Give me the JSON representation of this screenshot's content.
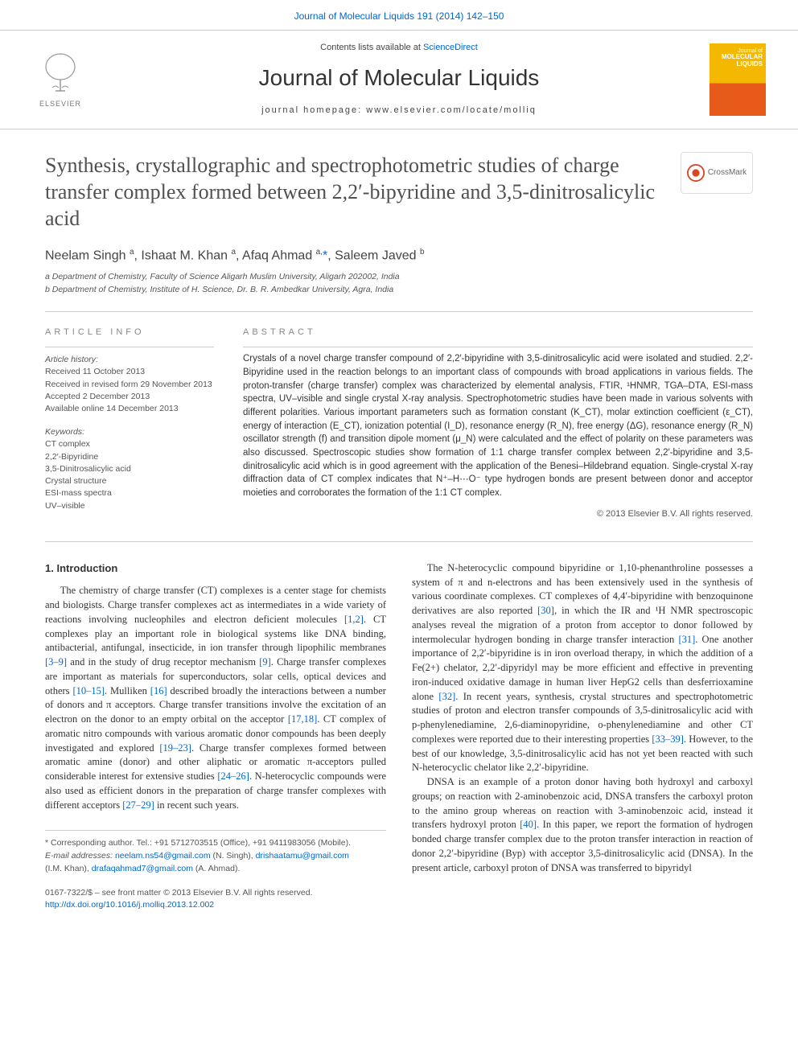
{
  "top_link": {
    "prefix": "",
    "citation": "Journal of Molecular Liquids 191 (2014) 142–150"
  },
  "masthead": {
    "publisher_name": "ELSEVIER",
    "contents_prefix": "Contents lists available at ",
    "contents_link": "ScienceDirect",
    "journal_name": "Journal of Molecular Liquids",
    "homepage_label": "journal homepage: www.elsevier.com/locate/molliq",
    "cover_small": "Journal of",
    "cover_title": "MOLECULAR LIQUIDS"
  },
  "article": {
    "title": "Synthesis, crystallographic and spectrophotometric studies of charge transfer complex formed between 2,2′-bipyridine and 3,5-dinitrosalicylic acid",
    "crossmark_label": "CrossMark",
    "authors_html": "Neelam Singh <sup>a</sup>, Ishaat M. Khan <sup>a</sup>, Afaq Ahmad <sup>a,</sup><a href=\"#\">*</a>, Saleem Javed <sup>b</sup>",
    "affiliations": [
      "a  Department of Chemistry, Faculty of Science Aligarh Muslim University, Aligarh 202002, India",
      "b  Department of Chemistry, Institute of H. Science, Dr. B. R. Ambedkar University, Agra, India"
    ]
  },
  "article_info": {
    "heading": "ARTICLE INFO",
    "history_label": "Article history:",
    "history": [
      "Received 11 October 2013",
      "Received in revised form 29 November 2013",
      "Accepted 2 December 2013",
      "Available online 14 December 2013"
    ],
    "keywords_label": "Keywords:",
    "keywords": [
      "CT complex",
      "2,2′-Bipyridine",
      "3,5-Dinitrosalicylic acid",
      "Crystal structure",
      "ESI-mass spectra",
      "UV–visible"
    ]
  },
  "abstract": {
    "heading": "ABSTRACT",
    "text": "Crystals of a novel charge transfer compound of 2,2′-bipyridine with 3,5-dinitrosalicylic acid were isolated and studied. 2,2′-Bipyridine used in the reaction belongs to an important class of compounds with broad applications in various fields. The proton-transfer (charge transfer) complex was characterized by elemental analysis, FTIR, ¹HNMR, TGA–DTA, ESI-mass spectra, UV–visible and single crystal X-ray analysis. Spectrophotometric studies have been made in various solvents with different polarities. Various important parameters such as formation constant (K_CT), molar extinction coefficient (ε_CT), energy of interaction (E_CT), ionization potential (I_D), resonance energy (R_N), free energy (ΔG), resonance energy (R_N) oscillator strength (f) and transition dipole moment (μ_N) were calculated and the effect of polarity on these parameters was also discussed. Spectroscopic studies show formation of 1:1 charge transfer complex between 2,2′-bipyridine and 3,5-dinitrosalicylic acid which is in good agreement with the application of the Benesi–Hildebrand equation. Single-crystal X-ray diffraction data of CT complex indicates that N⁺–H⋯O⁻ type hydrogen bonds are present between donor and acceptor moieties and corroborates the formation of the 1:1 CT complex.",
    "copyright": "© 2013 Elsevier B.V. All rights reserved."
  },
  "body": {
    "section1_heading": "1. Introduction",
    "col1_p1": "The chemistry of charge transfer (CT) complexes is a center stage for chemists and biologists. Charge transfer complexes act as intermediates in a wide variety of reactions involving nucleophiles and electron deficient molecules [1,2]. CT complexes play an important role in biological systems like DNA binding, antibacterial, antifungal, insecticide, in ion transfer through lipophilic membranes [3–9] and in the study of drug receptor mechanism [9]. Charge transfer complexes are important as materials for superconductors, solar cells, optical devices and others [10–15]. Mulliken [16] described broadly the interactions between a number of donors and π acceptors. Charge transfer transitions involve the excitation of an electron on the donor to an empty orbital on the acceptor [17,18]. CT complex of aromatic nitro compounds with various aromatic donor compounds has been deeply investigated and explored [19–23]. Charge transfer complexes formed between aromatic amine (donor) and other aliphatic or aromatic π-acceptors pulled considerable interest for extensive studies [24–26]. N-heterocyclic compounds were also used as efficient donors in the preparation of charge transfer complexes with different acceptors [27–29] in recent such years.",
    "col2_p1": "The N-heterocyclic compound bipyridine or 1,10-phenanthroline possesses a system of π and n-electrons and has been extensively used in the synthesis of various coordinate complexes. CT complexes of 4,4′-bipyridine with benzoquinone derivatives are also reported [30], in which the IR and ¹H NMR spectroscopic analyses reveal the migration of a proton from acceptor to donor followed by intermolecular hydrogen bonding in charge transfer interaction [31]. One another importance of 2,2′-bipyridine is in iron overload therapy, in which the addition of a Fe(2+) chelator, 2,2′-dipyridyl may be more efficient and effective in preventing iron-induced oxidative damage in human liver HepG2 cells than desferrioxamine alone [32]. In recent years, synthesis, crystal structures and spectrophotometric studies of proton and electron transfer compounds of 3,5-dinitrosalicylic acid with p-phenylenediamine, 2,6-diaminopyridine, o-phenylenediamine and other CT complexes were reported due to their interesting properties [33–39]. However, to the best of our knowledge, 3,5-dinitrosalicylic acid has not yet been reacted with such N-heterocyclic chelator like 2,2′-bipyridine.",
    "col2_p2": "DNSA is an example of a proton donor having both hydroxyl and carboxyl groups; on reaction with 2-aminobenzoic acid, DNSA transfers the carboxyl proton to the amino group whereas on reaction with 3-aminobenzoic acid, instead it transfers hydroxyl proton [40]. In this paper, we report the formation of hydrogen bonded charge transfer complex due to the proton transfer interaction in reaction of donor 2,2′-bipyridine (Byp) with acceptor 3,5-dinitrosalicylic acid (DNSA). In the present article, carboxyl proton of DNSA was transferred to bipyridyl"
  },
  "footer": {
    "corresponding": "* Corresponding author. Tel.: +91 5712703515 (Office), +91 9411983056 (Mobile).",
    "emails_label": "E-mail addresses: ",
    "email1": "neelam.ns54@gmail.com",
    "email1_who": " (N. Singh), ",
    "email2": "drishaatamu@gmail.com",
    "email2_who_line2": "(I.M. Khan), ",
    "email3": "drafaqahmad7@gmail.com",
    "email3_who": " (A. Ahmad).",
    "issn_line": "0167-7322/$ – see front matter © 2013 Elsevier B.V. All rights reserved.",
    "doi": "http://dx.doi.org/10.1016/j.molliq.2013.12.002"
  },
  "refs": {
    "r1": "[1,2]",
    "r2": "[3–9]",
    "r3": "[9]",
    "r4": "[10–15]",
    "r5": "[16]",
    "r6": "[17,18]",
    "r7": "[19–23]",
    "r8": "[24–26]",
    "r9": "[27–29]",
    "r10": "[30]",
    "r11": "[31]",
    "r12": "[32]",
    "r13": "[33–39]",
    "r14": "[40]"
  }
}
